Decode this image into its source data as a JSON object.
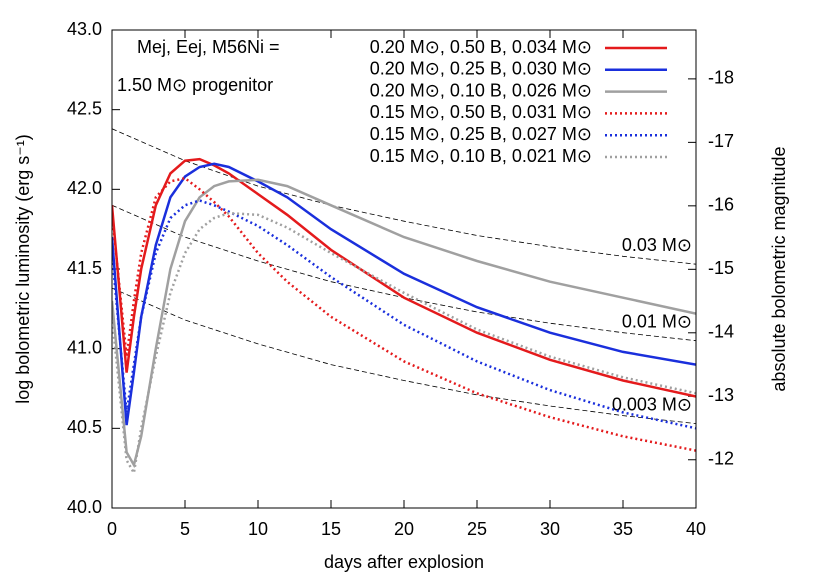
{
  "chart_data": {
    "type": "line",
    "xlabel": "days after explosion",
    "ylabel": "log bolometric luminosity (erg s⁻¹)",
    "y2label": "absolute bolometric magnitude",
    "legend_title": "Mej, Eej, M56Ni =",
    "annotation": "1.50 M⊙ progenitor",
    "xlim": [
      0,
      40
    ],
    "xticks": [
      0,
      5,
      10,
      15,
      20,
      25,
      30,
      35,
      40
    ],
    "ylim": [
      40,
      43
    ],
    "yticks": [
      {
        "value": 40,
        "label": "40.0"
      },
      40.5,
      {
        "value": 41,
        "label": "41.0"
      },
      41.5,
      {
        "value": 42,
        "label": "42.0"
      },
      42.5,
      {
        "value": 43,
        "label": "43.0"
      }
    ],
    "y2lim": [
      -11.24,
      -18.77
    ],
    "y2ticks": [
      -18,
      -17,
      -16,
      -15,
      -14,
      -13,
      -12
    ],
    "x": [
      0,
      1,
      1.5,
      2,
      3,
      4,
      5,
      6,
      7,
      8,
      10,
      12,
      15,
      20,
      25,
      30,
      35,
      40
    ],
    "series": [
      {
        "name": "0.20 M⊙, 0.50 B, 0.034 M⊙",
        "color": "#e41a1c",
        "style": "solid",
        "values": [
          41.9,
          40.85,
          41.2,
          41.5,
          41.9,
          42.1,
          42.18,
          42.19,
          42.15,
          42.1,
          41.97,
          41.84,
          41.62,
          41.32,
          41.1,
          40.93,
          40.8,
          40.7
        ]
      },
      {
        "name": "0.20 M⊙, 0.25 B, 0.030 M⊙",
        "color": "#1a2fdc",
        "style": "solid",
        "values": [
          41.7,
          40.52,
          40.85,
          41.2,
          41.65,
          41.95,
          42.08,
          42.14,
          42.16,
          42.14,
          42.05,
          41.95,
          41.75,
          41.47,
          41.26,
          41.1,
          40.98,
          40.9
        ]
      },
      {
        "name": "0.20 M⊙, 0.10 B, 0.026 M⊙",
        "color": "#a0a0a0",
        "style": "solid",
        "values": [
          41.3,
          40.35,
          40.27,
          40.45,
          41.0,
          41.5,
          41.8,
          41.95,
          42.02,
          42.05,
          42.06,
          42.02,
          41.9,
          41.7,
          41.55,
          41.42,
          41.32,
          41.22
        ]
      },
      {
        "name": "0.15 M⊙, 0.50 B, 0.031 M⊙",
        "color": "#e41a1c",
        "style": "dotted",
        "values": [
          41.85,
          40.95,
          41.3,
          41.6,
          41.95,
          42.05,
          42.07,
          42.0,
          41.92,
          41.83,
          41.6,
          41.42,
          41.2,
          40.92,
          40.72,
          40.57,
          40.45,
          40.36
        ]
      },
      {
        "name": "0.15 M⊙, 0.25 B, 0.027 M⊙",
        "color": "#1a2fdc",
        "style": "dotted",
        "values": [
          41.6,
          40.6,
          40.9,
          41.2,
          41.6,
          41.82,
          41.9,
          41.93,
          41.9,
          41.86,
          41.77,
          41.65,
          41.45,
          41.15,
          40.92,
          40.74,
          40.6,
          40.5
        ]
      },
      {
        "name": "0.15 M⊙, 0.10 B, 0.021 M⊙",
        "color": "#a0a0a0",
        "style": "dotted",
        "values": [
          41.2,
          40.3,
          40.22,
          40.5,
          40.95,
          41.35,
          41.6,
          41.75,
          41.82,
          41.85,
          41.84,
          41.76,
          41.6,
          41.35,
          41.12,
          40.95,
          40.82,
          40.72
        ]
      }
    ],
    "reference_lines": [
      {
        "label": "0.03 M⊙",
        "color": "#000000",
        "x": [
          0,
          5,
          10,
          15,
          20,
          25,
          30,
          35,
          40
        ],
        "values": [
          42.38,
          42.18,
          42.02,
          41.9,
          41.8,
          41.71,
          41.64,
          41.58,
          41.53
        ]
      },
      {
        "label": "0.01 M⊙",
        "color": "#000000",
        "x": [
          0,
          5,
          10,
          15,
          20,
          25,
          30,
          35,
          40
        ],
        "values": [
          41.9,
          41.7,
          41.55,
          41.42,
          41.32,
          41.23,
          41.16,
          41.1,
          41.05
        ]
      },
      {
        "label": "0.003 M⊙",
        "color": "#000000",
        "x": [
          0,
          5,
          10,
          15,
          20,
          25,
          30,
          35,
          40
        ],
        "values": [
          41.38,
          41.18,
          41.03,
          40.9,
          40.8,
          40.71,
          40.64,
          40.58,
          40.53
        ]
      }
    ]
  }
}
